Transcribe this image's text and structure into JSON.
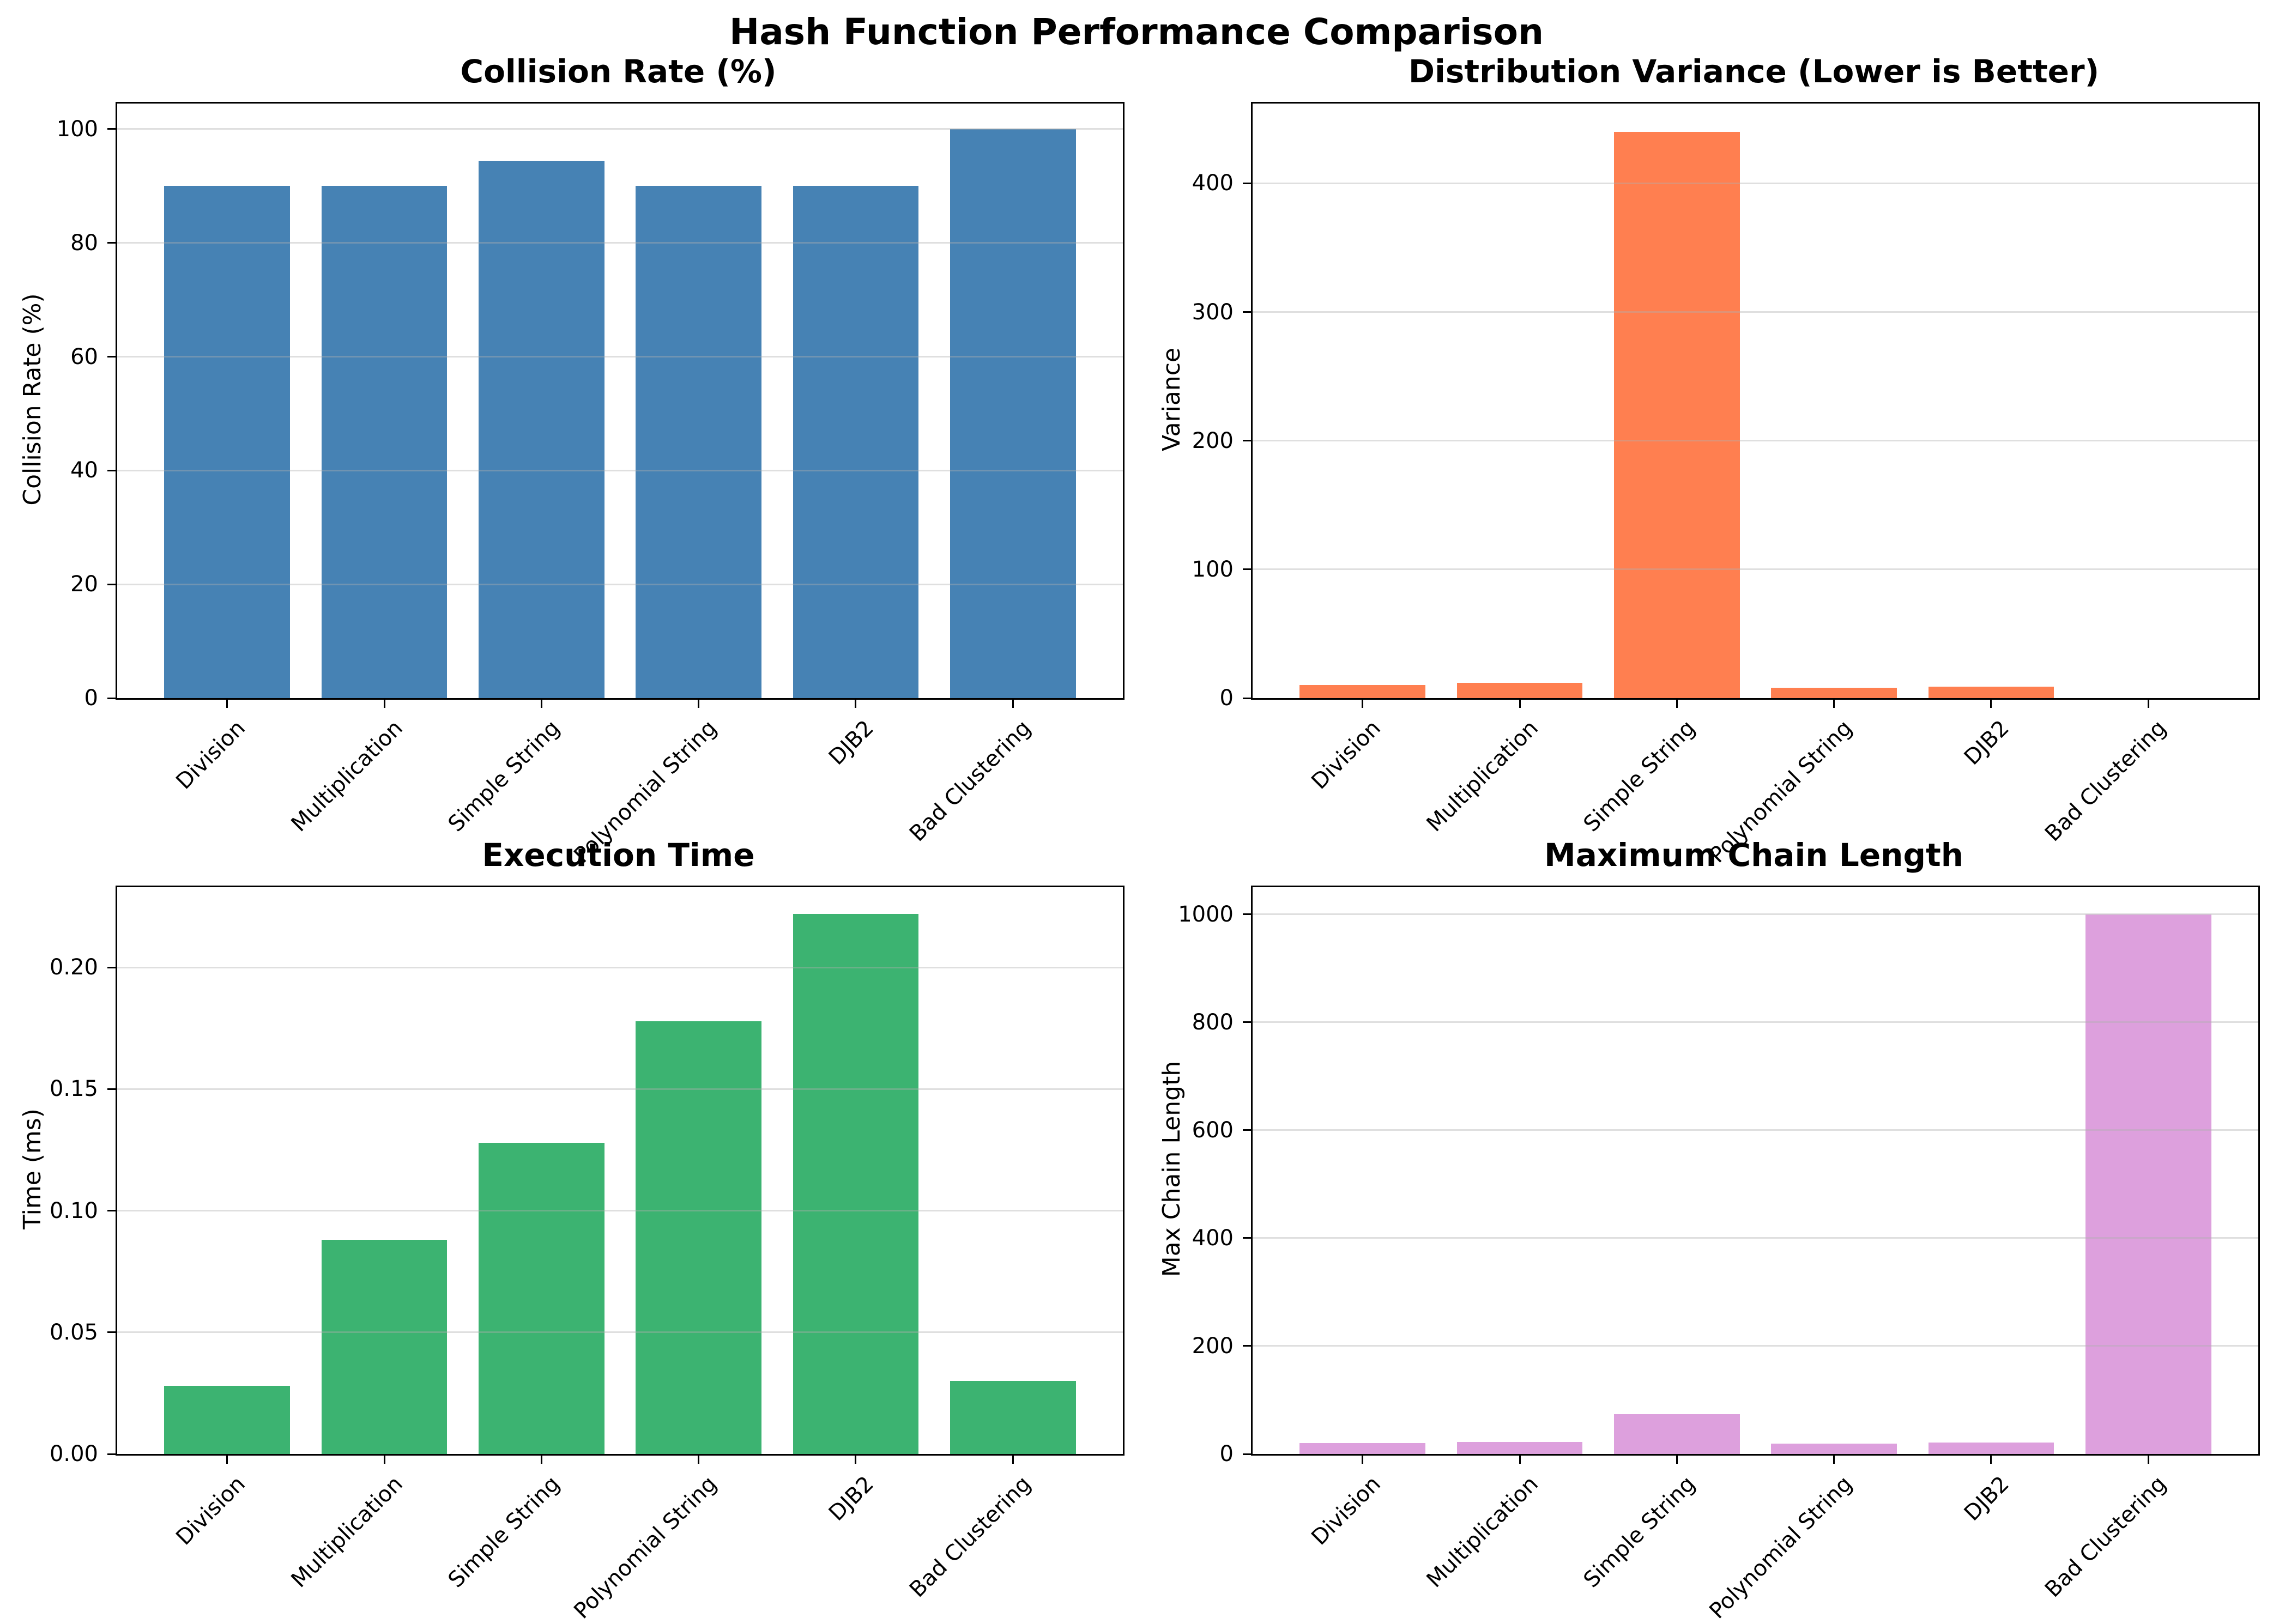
{
  "figure": {
    "title": "Hash Function Performance Comparison",
    "background": "#ffffff"
  },
  "categories": [
    "Division",
    "Multiplication",
    "Simple String",
    "Polynomial String",
    "DJB2",
    "Bad Clustering"
  ],
  "style": {
    "grid_color": "#b0b0b0",
    "grid_alpha": 0.4,
    "spine_color": "#000000",
    "text_color": "#000000"
  },
  "chart_data": [
    {
      "type": "bar",
      "position": "top-left",
      "title": "Collision Rate (%)",
      "ylabel": "Collision Rate (%)",
      "xlabel": "",
      "categories": [
        "Division",
        "Multiplication",
        "Simple String",
        "Polynomial String",
        "DJB2",
        "Bad Clustering"
      ],
      "values": [
        90,
        90,
        94.4,
        90,
        90,
        100
      ],
      "color": "#4682B4",
      "ylim": [
        0,
        104.5
      ],
      "yticks": [
        0,
        20,
        40,
        60,
        80,
        100
      ],
      "ytick_labels": [
        "0",
        "20",
        "40",
        "60",
        "80",
        "100"
      ],
      "grid": "horizontal-only",
      "legend": "none",
      "xtick_rotation": 45
    },
    {
      "type": "bar",
      "position": "top-right",
      "title": "Distribution Variance (Lower is Better)",
      "ylabel": "Variance",
      "xlabel": "",
      "categories": [
        "Division",
        "Multiplication",
        "Simple String",
        "Polynomial String",
        "DJB2",
        "Bad Clustering"
      ],
      "values": [
        10,
        12,
        440,
        8,
        9,
        0
      ],
      "color": "#FF7F50",
      "ylim": [
        0,
        462
      ],
      "yticks": [
        0,
        100,
        200,
        300,
        400
      ],
      "ytick_labels": [
        "0",
        "100",
        "200",
        "300",
        "400"
      ],
      "grid": "horizontal-only",
      "legend": "none",
      "xtick_rotation": 45
    },
    {
      "type": "bar",
      "position": "bottom-left",
      "title": "Execution Time",
      "ylabel": "Time (ms)",
      "xlabel": "",
      "categories": [
        "Division",
        "Multiplication",
        "Simple String",
        "Polynomial String",
        "DJB2",
        "Bad Clustering"
      ],
      "values": [
        0.028,
        0.088,
        0.128,
        0.178,
        0.222,
        0.03
      ],
      "color": "#3CB371",
      "ylim": [
        0,
        0.233
      ],
      "yticks": [
        0,
        0.05,
        0.1,
        0.15,
        0.2
      ],
      "ytick_labels": [
        "0.00",
        "0.05",
        "0.10",
        "0.15",
        "0.20"
      ],
      "grid": "horizontal-only",
      "legend": "none",
      "xtick_rotation": 45
    },
    {
      "type": "bar",
      "position": "bottom-right",
      "title": "Maximum Chain Length",
      "ylabel": "Max Chain Length",
      "xlabel": "",
      "categories": [
        "Division",
        "Multiplication",
        "Simple String",
        "Polynomial String",
        "DJB2",
        "Bad Clustering"
      ],
      "values": [
        20,
        22,
        74,
        19,
        21,
        1000
      ],
      "color": "#DDA0DD",
      "ylim": [
        0,
        1050
      ],
      "yticks": [
        0,
        200,
        400,
        600,
        800,
        1000
      ],
      "ytick_labels": [
        "0",
        "200",
        "400",
        "600",
        "800",
        "1000"
      ],
      "grid": "horizontal-only",
      "legend": "none",
      "xtick_rotation": 45
    }
  ]
}
